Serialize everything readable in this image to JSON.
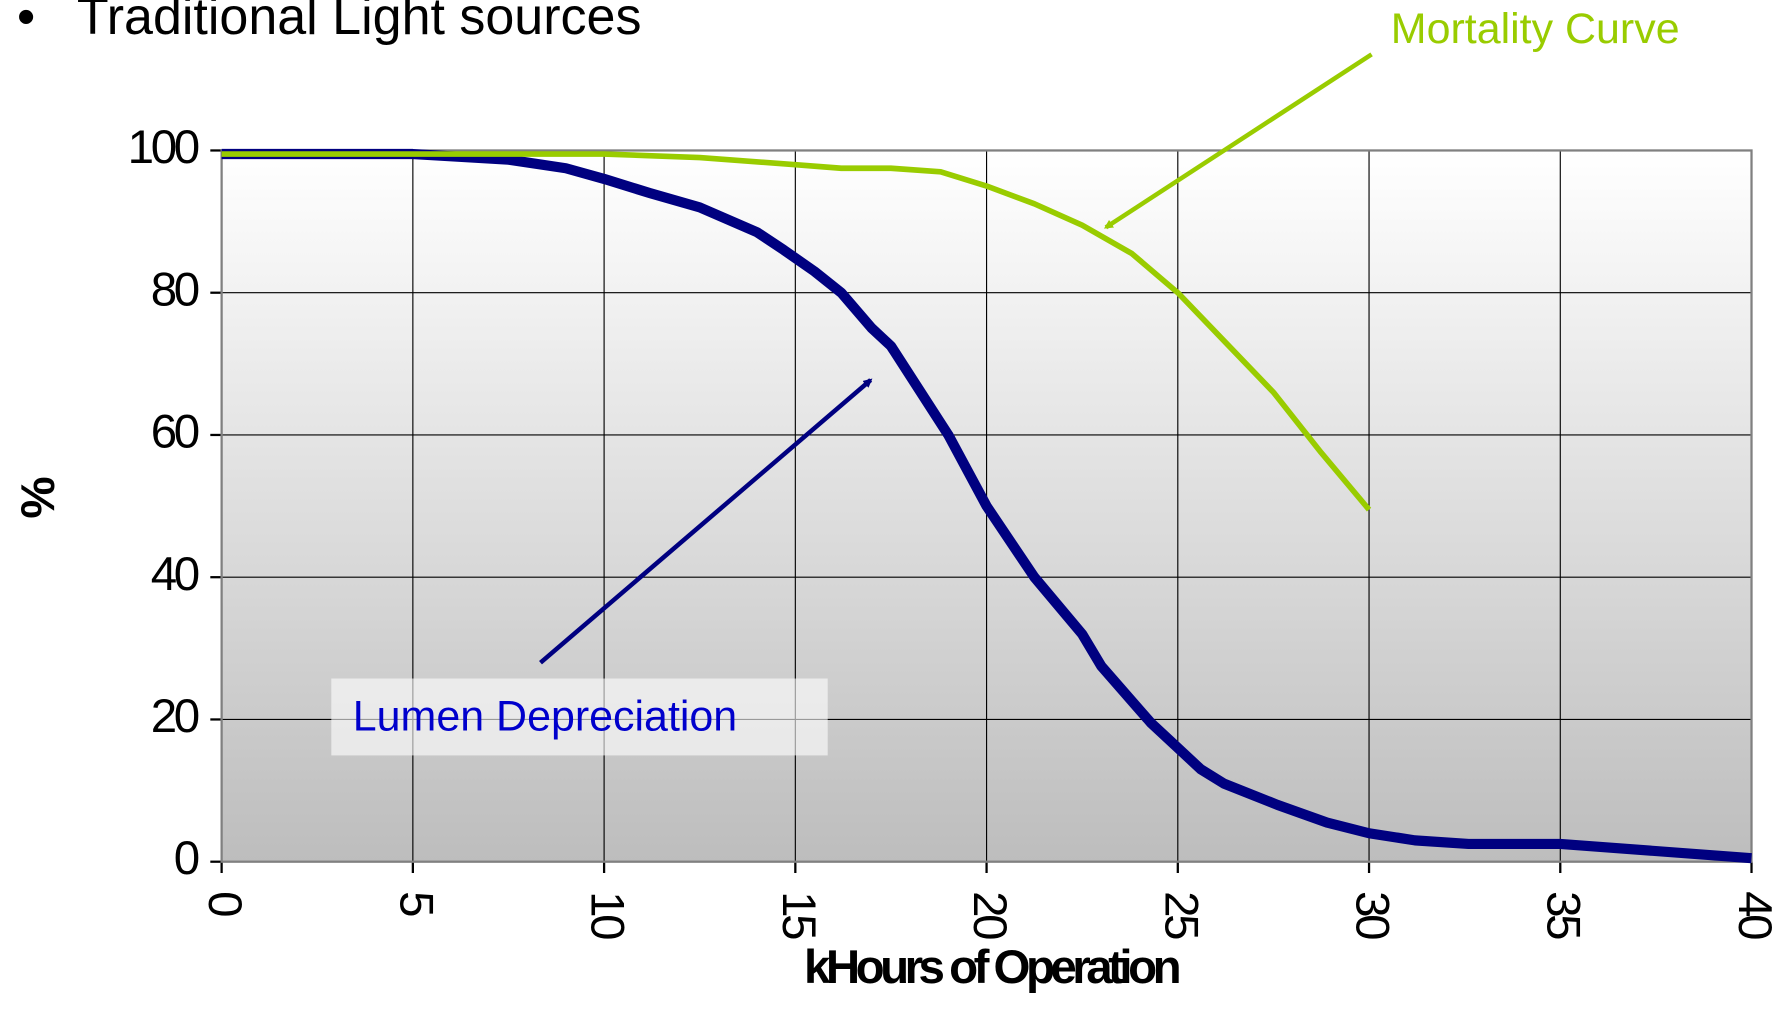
{
  "chart_data": {
    "type": "line",
    "bullet": "•",
    "title": "Traditional Light sources",
    "xlabel": "kHours of Operation",
    "ylabel": "%",
    "xlim": [
      0,
      40
    ],
    "xticks": [
      0,
      5,
      10,
      15,
      20,
      25,
      30,
      35,
      40
    ],
    "ylim": [
      0,
      100
    ],
    "yticks": [
      0,
      20,
      40,
      60,
      80,
      100
    ],
    "grid": true,
    "series": [
      {
        "name": "Lumen Depreciation",
        "color": "#000080",
        "label_color": "#0000cc",
        "x": [
          0,
          5,
          7.5,
          9,
          10,
          11.2,
          12.5,
          14,
          14.7,
          15.5,
          16.2,
          17,
          17.5,
          19,
          20,
          21.25,
          22.5,
          23,
          24.3,
          25,
          25.6,
          26.2,
          27.6,
          28.9,
          30,
          31.2,
          32.6,
          35,
          40
        ],
        "values": [
          99.5,
          99.5,
          98.7,
          97.5,
          96,
          94,
          92,
          88.5,
          86,
          83,
          80,
          75,
          72.5,
          60,
          50,
          40,
          32,
          27.5,
          19.5,
          16,
          13,
          11,
          8,
          5.5,
          4,
          3,
          2.5,
          2.5,
          0.5
        ]
      },
      {
        "name": "Mortality Curve",
        "color": "#99cc00",
        "label_color": "#99cc00",
        "x": [
          0,
          10,
          12.5,
          15,
          16.2,
          17.5,
          18.8,
          20,
          21.25,
          22.5,
          23.8,
          25,
          26.25,
          27.5,
          28.75,
          30
        ],
        "values": [
          99.5,
          99.5,
          99,
          98,
          97.5,
          97.5,
          97,
          95,
          92.5,
          89.5,
          85.5,
          80,
          73,
          66,
          57.5,
          49.5
        ]
      }
    ]
  }
}
